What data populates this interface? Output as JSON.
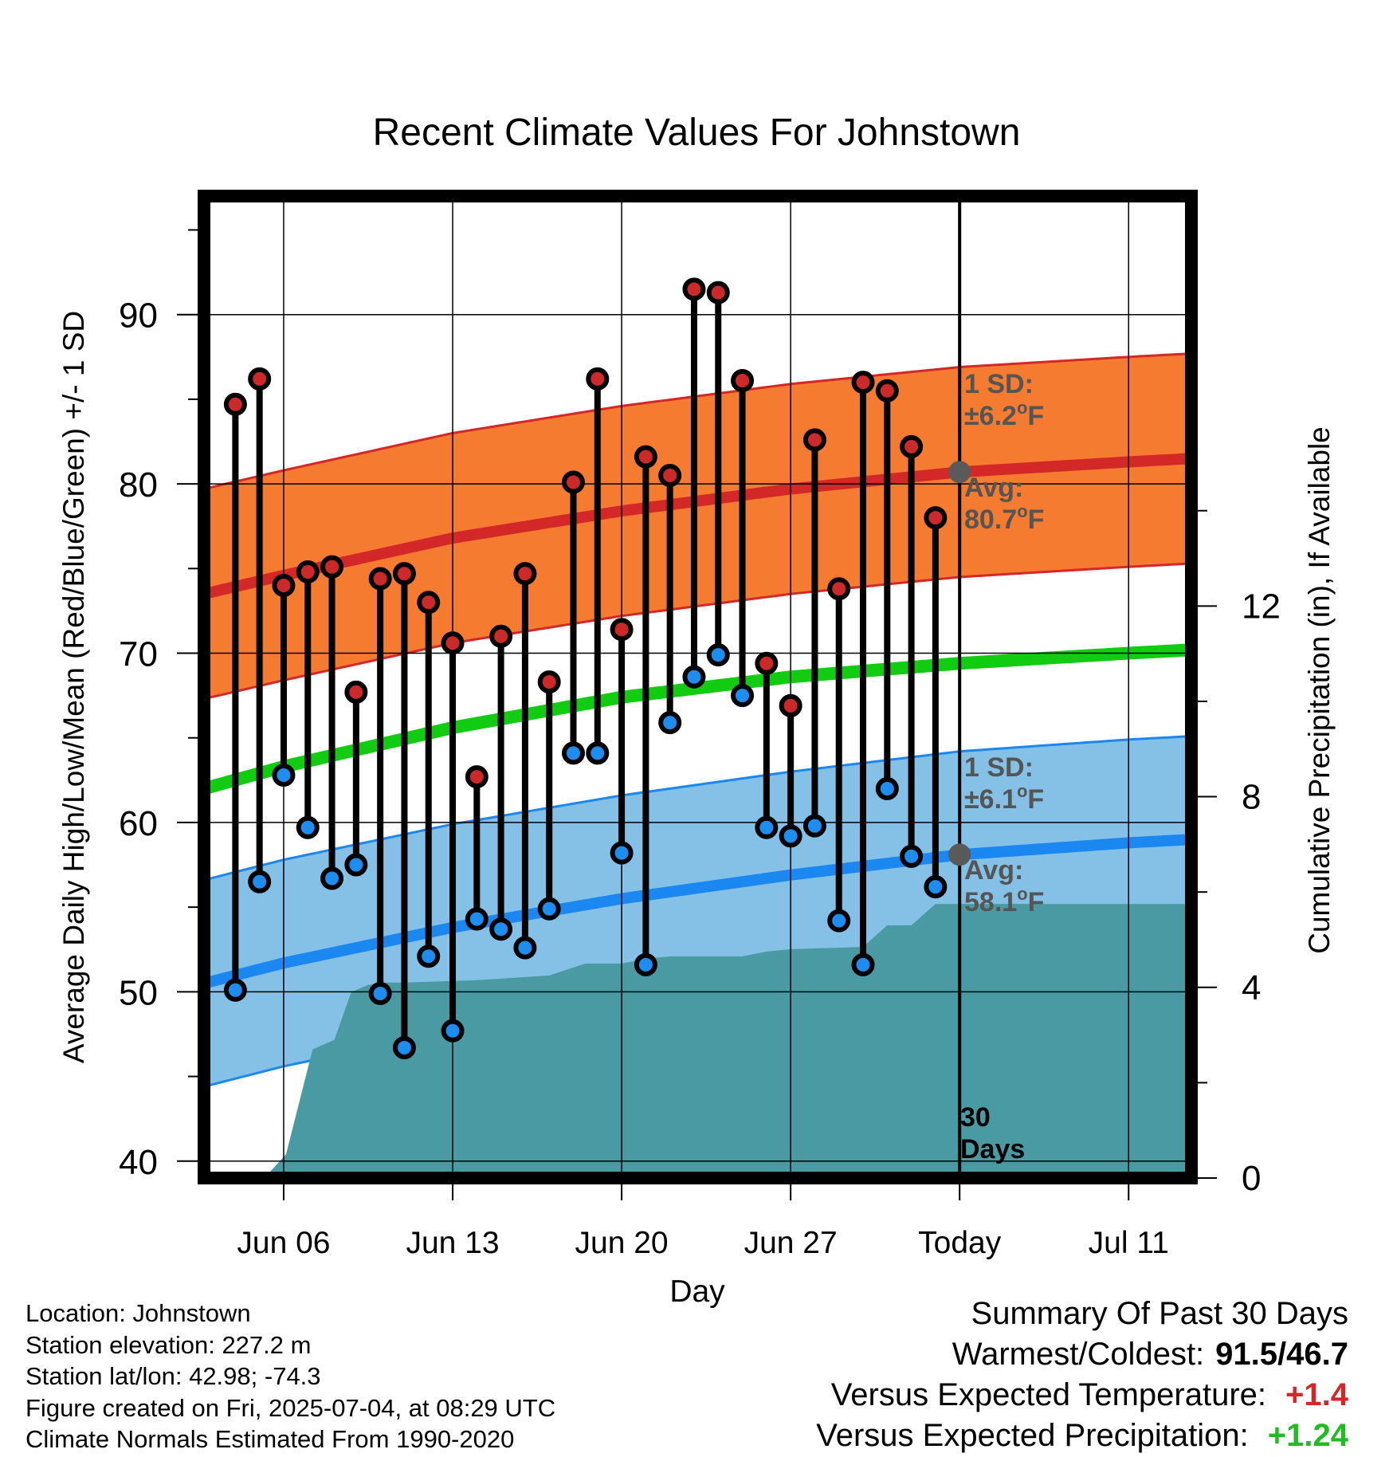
{
  "chart_data": {
    "type": "line",
    "title": "Recent Climate Values For Johnstown",
    "xlabel": "Day",
    "ylabel": "Average Daily High/Low/Mean (Red/Blue/Green) +/- 1 SD",
    "y2label": "Cumulative Precipitation (in), If Available",
    "ylim": [
      39,
      97
    ],
    "y2lim": [
      0,
      20.6
    ],
    "yticks": [
      40,
      50,
      60,
      70,
      80,
      90
    ],
    "y2ticks": [
      0,
      4,
      8,
      12
    ],
    "x_ticks": [
      {
        "day": 6,
        "label": "Jun 06"
      },
      {
        "day": 13,
        "label": "Jun 13"
      },
      {
        "day": 20,
        "label": "Jun 20"
      },
      {
        "day": 27,
        "label": "Jun 27"
      },
      {
        "day": 34,
        "label": "Today"
      },
      {
        "day": 41,
        "label": "Jul 11"
      }
    ],
    "xlim_days_from_jun_01": [
      2.7,
      43.6
    ],
    "grid": true,
    "today_day": 34,
    "today_label_lines": [
      "30",
      "Days"
    ],
    "daily_high": [
      84.7,
      86.2,
      74.0,
      74.8,
      75.1,
      67.7,
      74.4,
      74.7,
      73.0,
      70.6,
      62.7,
      71.0,
      74.7,
      68.3,
      80.1,
      86.2,
      71.4,
      81.6,
      80.5,
      91.5,
      91.3,
      86.1,
      69.4,
      66.9,
      82.6,
      73.8,
      86.0,
      85.5,
      82.2,
      78.0
    ],
    "daily_low": [
      50.1,
      56.5,
      62.8,
      59.7,
      56.7,
      57.5,
      49.9,
      46.7,
      52.1,
      47.7,
      54.3,
      53.7,
      52.6,
      54.9,
      64.1,
      64.1,
      58.2,
      51.6,
      65.9,
      68.6,
      69.9,
      67.5,
      59.7,
      59.2,
      59.8,
      54.2,
      51.6,
      62.0,
      58.0,
      56.2
    ],
    "daily_days": [
      4,
      5,
      6,
      7,
      8,
      9,
      10,
      11,
      12,
      13,
      14,
      15,
      16,
      17,
      18,
      19,
      20,
      21,
      22,
      23,
      24,
      25,
      26,
      27,
      28,
      29,
      30,
      31,
      32,
      33
    ],
    "normal_days": [
      2.7,
      6,
      13,
      20,
      27,
      34,
      41,
      43.6
    ],
    "normal_high": [
      73.5,
      74.6,
      76.8,
      78.4,
      79.7,
      80.7,
      81.3,
      81.5
    ],
    "normal_high_sd": 6.2,
    "normal_low": [
      50.5,
      51.7,
      53.8,
      55.5,
      56.9,
      58.1,
      58.8,
      59.0
    ],
    "normal_low_sd": 6.1,
    "normal_mean": [
      62.0,
      63.3,
      65.6,
      67.4,
      68.6,
      69.4,
      70.0,
      70.2
    ],
    "precip_days": [
      2.7,
      5.2,
      6.1,
      7.2,
      8.1,
      8.8,
      9.5,
      10.2,
      11.0,
      14.0,
      17.0,
      18.5,
      20.0,
      21.0,
      22.0,
      25.0,
      26.0,
      27.0,
      30.0,
      31.0,
      32.0,
      33.0,
      34.0,
      43.6
    ],
    "precip_cum": [
      0.0,
      0.0,
      0.5,
      2.7,
      2.9,
      3.9,
      4.05,
      4.1,
      4.1,
      4.15,
      4.25,
      4.5,
      4.5,
      4.6,
      4.65,
      4.65,
      4.75,
      4.8,
      4.85,
      5.3,
      5.3,
      5.75,
      5.75,
      5.75
    ],
    "annotations": {
      "high_sd_label": "1 SD:",
      "high_sd_value": "±6.2",
      "high_avg_label": "Avg:",
      "high_avg_value": "80.7",
      "low_sd_label": "1 SD:",
      "low_sd_value": "±6.1",
      "low_avg_label": "Avg:",
      "low_avg_value": "58.1",
      "deg_sup": "o",
      "unit": "F"
    },
    "colors": {
      "high_band": "#f57b30",
      "high_line": "#d42828",
      "mean_line": "#11cc11",
      "low_band": "#85c1e6",
      "low_line": "#1b87f0",
      "precip": "#4a9aa4",
      "high_dot": "#cc2a2a",
      "low_dot": "#1d8ef0",
      "annotation": "#555555"
    }
  },
  "footer": {
    "location": "Location: Johnstown",
    "elevation": "Station elevation: 227.2 m",
    "latlon": "Station lat/lon: 42.98; -74.3",
    "created": "Figure created on Fri, 2025-07-04, at 08:29 UTC",
    "normals": "Climate Normals Estimated From 1990-2020"
  },
  "summary": {
    "title": "Summary Of Past 30 Days",
    "warmest_label": "Warmest/Coldest:",
    "warmest_value": "91.5/46.7",
    "temp_label": "Versus Expected Temperature:",
    "temp_value": "+1.4",
    "precip_label": "Versus Expected Precipitation:",
    "precip_value": "+1.24",
    "temp_color": "#d42828",
    "precip_color": "#22bb22"
  }
}
